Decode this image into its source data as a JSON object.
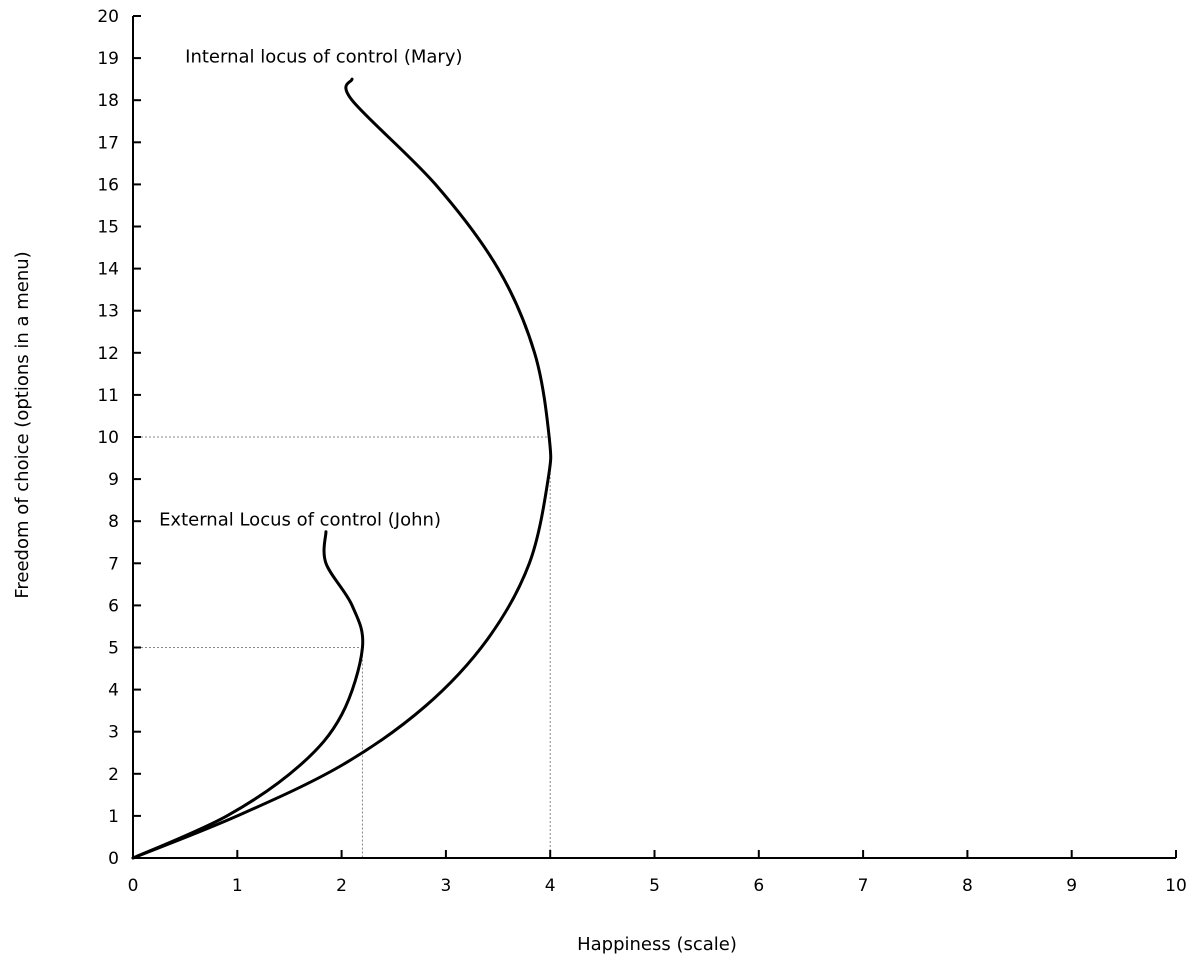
{
  "chart_data": {
    "type": "line",
    "title": "",
    "xlabel": "Happiness (scale)",
    "ylabel": "Freedom of choice (options in a menu)",
    "xlim": [
      0,
      10
    ],
    "ylim": [
      0,
      20
    ],
    "x_ticks": [
      "0",
      "1",
      "2",
      "3",
      "4",
      "5",
      "6",
      "7",
      "8",
      "9",
      "10"
    ],
    "y_ticks": [
      "0",
      "1",
      "2",
      "3",
      "4",
      "5",
      "6",
      "7",
      "8",
      "9",
      "10",
      "11",
      "12",
      "13",
      "14",
      "15",
      "16",
      "17",
      "18",
      "19",
      "20"
    ],
    "grid": false,
    "series": [
      {
        "name": "Internal locus of control (Mary)",
        "points": [
          {
            "x": 0,
            "y": 0
          },
          {
            "x": 1.0,
            "y": 1.0
          },
          {
            "x": 2.0,
            "y": 2.2
          },
          {
            "x": 2.8,
            "y": 3.6
          },
          {
            "x": 3.4,
            "y": 5.2
          },
          {
            "x": 3.8,
            "y": 7.0
          },
          {
            "x": 3.98,
            "y": 9.0
          },
          {
            "x": 3.99,
            "y": 10.0
          },
          {
            "x": 3.85,
            "y": 12.0
          },
          {
            "x": 3.5,
            "y": 14.0
          },
          {
            "x": 2.9,
            "y": 16.0
          },
          {
            "x": 2.1,
            "y": 18.0
          },
          {
            "x": 2.1,
            "y": 18.5
          }
        ],
        "color": "#000000"
      },
      {
        "name": "External Locus of control (John)",
        "points": [
          {
            "x": 0,
            "y": 0
          },
          {
            "x": 0.9,
            "y": 1.0
          },
          {
            "x": 1.6,
            "y": 2.2
          },
          {
            "x": 2.0,
            "y": 3.4
          },
          {
            "x": 2.2,
            "y": 5.0
          },
          {
            "x": 2.1,
            "y": 6.0
          },
          {
            "x": 1.85,
            "y": 7.0
          },
          {
            "x": 1.85,
            "y": 7.75
          }
        ],
        "color": "#000000"
      }
    ],
    "reference_lines": [
      {
        "series": "Internal locus of control (Mary)",
        "x": 4,
        "y": 10
      },
      {
        "series": "External Locus of control (John)",
        "x": 2.2,
        "y": 5
      }
    ],
    "annotations": [
      {
        "text": "Internal locus of control (Mary)",
        "x": 0.5,
        "y": 18.9
      },
      {
        "text": "External Locus of control (John)",
        "x": 0.25,
        "y": 7.9
      }
    ]
  }
}
